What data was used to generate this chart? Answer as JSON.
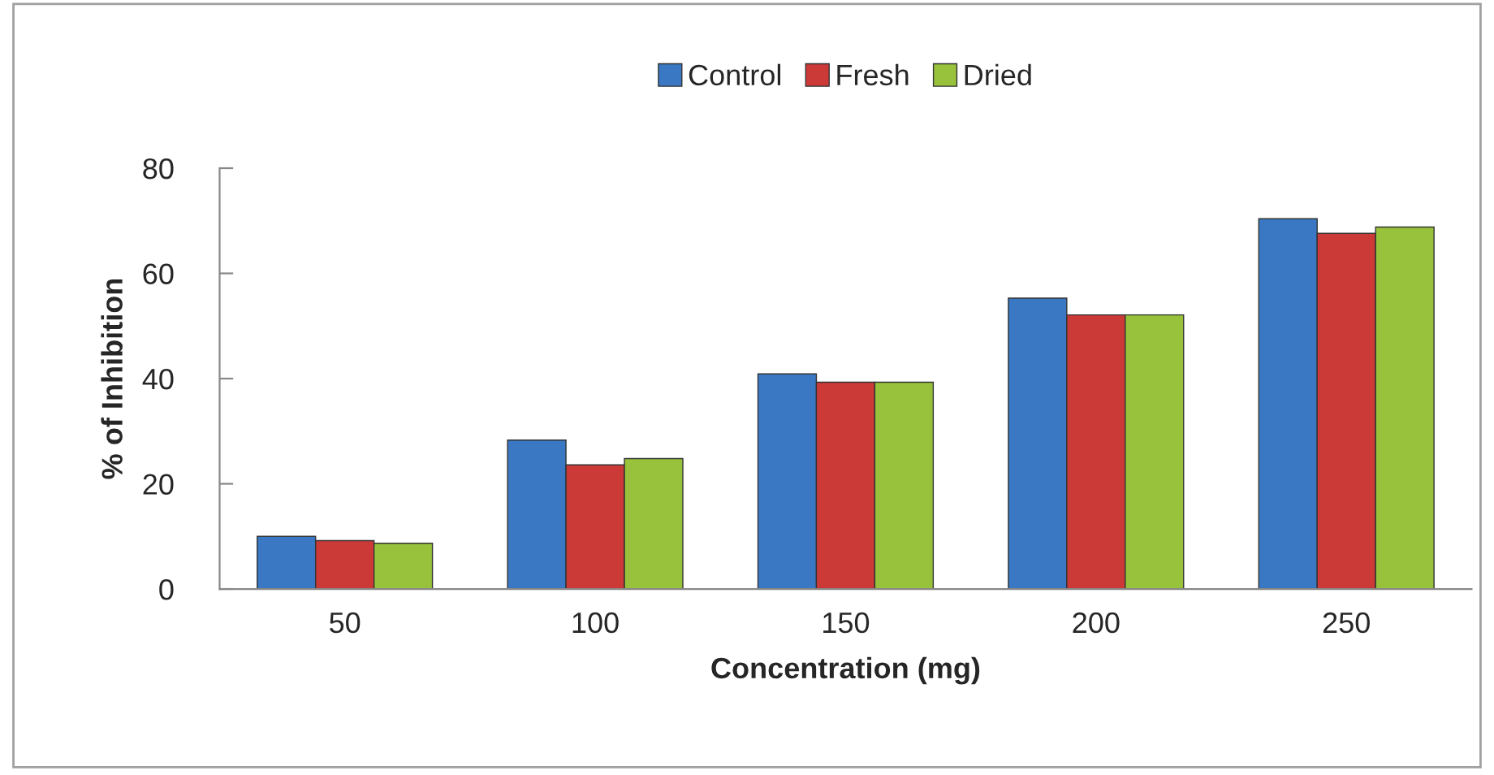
{
  "chart_data": {
    "type": "bar",
    "xlabel": "Concentration (mg)",
    "ylabel": "% of Inhibition",
    "categories": [
      "50",
      "100",
      "150",
      "200",
      "250"
    ],
    "series": [
      {
        "name": "Control",
        "color": "#3a78c3",
        "values": [
          10.0,
          28.3,
          40.9,
          55.3,
          70.4
        ]
      },
      {
        "name": "Fresh",
        "color": "#cc3a38",
        "values": [
          9.2,
          23.6,
          39.3,
          52.1,
          67.6
        ]
      },
      {
        "name": "Dried",
        "color": "#98c23c",
        "values": [
          8.7,
          24.8,
          39.3,
          52.1,
          68.8
        ]
      }
    ],
    "ylim": [
      0,
      80
    ],
    "yticks": [
      0,
      20,
      40,
      60,
      80
    ],
    "grid": false,
    "legend": "top"
  }
}
